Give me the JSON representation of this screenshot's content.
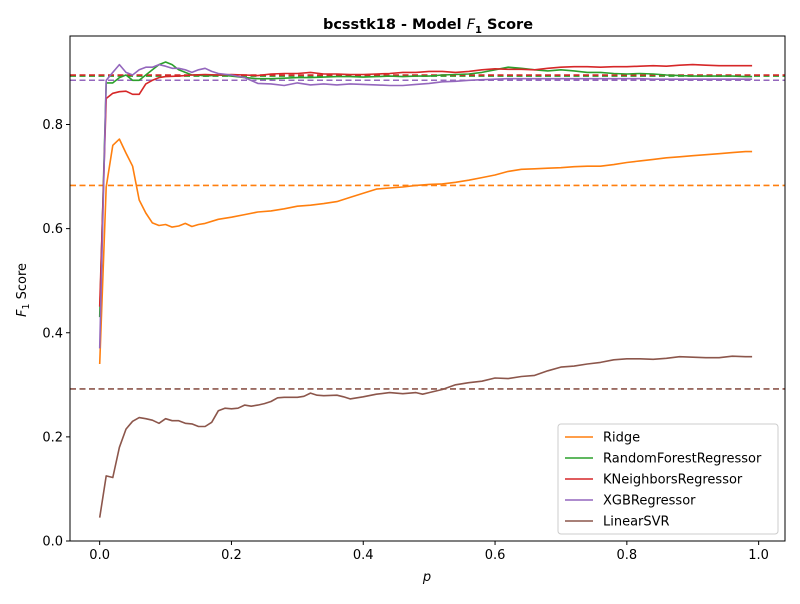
{
  "chart_data": {
    "type": "line",
    "title_prefix": "bcsstk18 - Model ",
    "title_f": "F",
    "title_sub": "1",
    "title_suffix": " Score",
    "xlabel": "p",
    "ylabel_f": "F",
    "ylabel_sub": "1",
    "ylabel_suffix": " Score",
    "xlim": [
      -0.045,
      1.04
    ],
    "ylim": [
      0.0,
      0.97
    ],
    "xticks": [
      0.0,
      0.2,
      0.4,
      0.6,
      0.8,
      1.0
    ],
    "xtick_labels": [
      "0.0",
      "0.2",
      "0.4",
      "0.6",
      "0.8",
      "1.0"
    ],
    "yticks": [
      0.0,
      0.2,
      0.4,
      0.6,
      0.8
    ],
    "ytick_labels": [
      "0.0",
      "0.2",
      "0.4",
      "0.6",
      "0.8"
    ],
    "legend_position": "bottom-right",
    "series": [
      {
        "name": "Ridge",
        "color": "#ff7f0e",
        "baseline": 0.683,
        "points": [
          [
            0.0,
            0.34
          ],
          [
            0.01,
            0.68
          ],
          [
            0.02,
            0.76
          ],
          [
            0.03,
            0.772
          ],
          [
            0.04,
            0.745
          ],
          [
            0.05,
            0.72
          ],
          [
            0.06,
            0.655
          ],
          [
            0.07,
            0.63
          ],
          [
            0.08,
            0.611
          ],
          [
            0.09,
            0.606
          ],
          [
            0.1,
            0.608
          ],
          [
            0.11,
            0.603
          ],
          [
            0.12,
            0.605
          ],
          [
            0.13,
            0.61
          ],
          [
            0.14,
            0.604
          ],
          [
            0.15,
            0.608
          ],
          [
            0.16,
            0.61
          ],
          [
            0.18,
            0.618
          ],
          [
            0.2,
            0.622
          ],
          [
            0.22,
            0.627
          ],
          [
            0.24,
            0.632
          ],
          [
            0.26,
            0.634
          ],
          [
            0.28,
            0.638
          ],
          [
            0.3,
            0.643
          ],
          [
            0.32,
            0.645
          ],
          [
            0.34,
            0.648
          ],
          [
            0.36,
            0.652
          ],
          [
            0.38,
            0.66
          ],
          [
            0.4,
            0.668
          ],
          [
            0.42,
            0.676
          ],
          [
            0.44,
            0.678
          ],
          [
            0.46,
            0.68
          ],
          [
            0.48,
            0.683
          ],
          [
            0.5,
            0.685
          ],
          [
            0.52,
            0.686
          ],
          [
            0.54,
            0.689
          ],
          [
            0.56,
            0.693
          ],
          [
            0.58,
            0.698
          ],
          [
            0.6,
            0.703
          ],
          [
            0.62,
            0.71
          ],
          [
            0.64,
            0.714
          ],
          [
            0.66,
            0.715
          ],
          [
            0.68,
            0.716
          ],
          [
            0.7,
            0.717
          ],
          [
            0.72,
            0.719
          ],
          [
            0.74,
            0.72
          ],
          [
            0.76,
            0.72
          ],
          [
            0.78,
            0.723
          ],
          [
            0.8,
            0.727
          ],
          [
            0.82,
            0.73
          ],
          [
            0.84,
            0.733
          ],
          [
            0.86,
            0.736
          ],
          [
            0.88,
            0.738
          ],
          [
            0.9,
            0.74
          ],
          [
            0.92,
            0.742
          ],
          [
            0.94,
            0.744
          ],
          [
            0.96,
            0.746
          ],
          [
            0.98,
            0.748
          ],
          [
            0.99,
            0.748
          ]
        ]
      },
      {
        "name": "RandomForestRegressor",
        "color": "#2ca02c",
        "baseline": 0.893,
        "points": [
          [
            0.0,
            0.43
          ],
          [
            0.01,
            0.88
          ],
          [
            0.02,
            0.88
          ],
          [
            0.03,
            0.89
          ],
          [
            0.04,
            0.895
          ],
          [
            0.05,
            0.885
          ],
          [
            0.06,
            0.885
          ],
          [
            0.07,
            0.895
          ],
          [
            0.08,
            0.905
          ],
          [
            0.09,
            0.915
          ],
          [
            0.1,
            0.92
          ],
          [
            0.11,
            0.915
          ],
          [
            0.12,
            0.905
          ],
          [
            0.13,
            0.9
          ],
          [
            0.14,
            0.895
          ],
          [
            0.15,
            0.895
          ],
          [
            0.16,
            0.893
          ],
          [
            0.18,
            0.895
          ],
          [
            0.2,
            0.893
          ],
          [
            0.22,
            0.89
          ],
          [
            0.24,
            0.888
          ],
          [
            0.26,
            0.888
          ],
          [
            0.28,
            0.889
          ],
          [
            0.3,
            0.89
          ],
          [
            0.32,
            0.89
          ],
          [
            0.34,
            0.891
          ],
          [
            0.36,
            0.892
          ],
          [
            0.38,
            0.892
          ],
          [
            0.4,
            0.891
          ],
          [
            0.42,
            0.892
          ],
          [
            0.44,
            0.893
          ],
          [
            0.46,
            0.892
          ],
          [
            0.48,
            0.893
          ],
          [
            0.5,
            0.893
          ],
          [
            0.52,
            0.895
          ],
          [
            0.54,
            0.896
          ],
          [
            0.56,
            0.897
          ],
          [
            0.58,
            0.9
          ],
          [
            0.6,
            0.905
          ],
          [
            0.62,
            0.91
          ],
          [
            0.64,
            0.908
          ],
          [
            0.66,
            0.905
          ],
          [
            0.68,
            0.903
          ],
          [
            0.7,
            0.905
          ],
          [
            0.72,
            0.903
          ],
          [
            0.74,
            0.9
          ],
          [
            0.76,
            0.9
          ],
          [
            0.78,
            0.898
          ],
          [
            0.8,
            0.897
          ],
          [
            0.82,
            0.898
          ],
          [
            0.84,
            0.897
          ],
          [
            0.86,
            0.895
          ],
          [
            0.88,
            0.894
          ],
          [
            0.9,
            0.893
          ],
          [
            0.92,
            0.893
          ],
          [
            0.94,
            0.893
          ],
          [
            0.96,
            0.893
          ],
          [
            0.98,
            0.892
          ],
          [
            0.99,
            0.892
          ]
        ]
      },
      {
        "name": "KNeighborsRegressor",
        "color": "#d62728",
        "baseline": 0.895,
        "points": [
          [
            0.0,
            0.45
          ],
          [
            0.01,
            0.85
          ],
          [
            0.02,
            0.86
          ],
          [
            0.03,
            0.863
          ],
          [
            0.04,
            0.864
          ],
          [
            0.05,
            0.858
          ],
          [
            0.06,
            0.858
          ],
          [
            0.07,
            0.878
          ],
          [
            0.08,
            0.885
          ],
          [
            0.09,
            0.89
          ],
          [
            0.1,
            0.892
          ],
          [
            0.12,
            0.893
          ],
          [
            0.14,
            0.895
          ],
          [
            0.16,
            0.896
          ],
          [
            0.18,
            0.895
          ],
          [
            0.2,
            0.896
          ],
          [
            0.22,
            0.895
          ],
          [
            0.24,
            0.894
          ],
          [
            0.26,
            0.897
          ],
          [
            0.28,
            0.898
          ],
          [
            0.3,
            0.898
          ],
          [
            0.32,
            0.9
          ],
          [
            0.34,
            0.897
          ],
          [
            0.36,
            0.897
          ],
          [
            0.38,
            0.896
          ],
          [
            0.4,
            0.896
          ],
          [
            0.42,
            0.897
          ],
          [
            0.44,
            0.898
          ],
          [
            0.46,
            0.9
          ],
          [
            0.48,
            0.9
          ],
          [
            0.5,
            0.902
          ],
          [
            0.52,
            0.902
          ],
          [
            0.54,
            0.9
          ],
          [
            0.56,
            0.902
          ],
          [
            0.58,
            0.905
          ],
          [
            0.6,
            0.907
          ],
          [
            0.62,
            0.906
          ],
          [
            0.64,
            0.906
          ],
          [
            0.66,
            0.905
          ],
          [
            0.68,
            0.908
          ],
          [
            0.7,
            0.91
          ],
          [
            0.72,
            0.911
          ],
          [
            0.74,
            0.911
          ],
          [
            0.76,
            0.91
          ],
          [
            0.78,
            0.911
          ],
          [
            0.8,
            0.911
          ],
          [
            0.82,
            0.912
          ],
          [
            0.84,
            0.913
          ],
          [
            0.86,
            0.912
          ],
          [
            0.88,
            0.914
          ],
          [
            0.9,
            0.915
          ],
          [
            0.92,
            0.914
          ],
          [
            0.94,
            0.913
          ],
          [
            0.96,
            0.913
          ],
          [
            0.98,
            0.913
          ],
          [
            0.99,
            0.913
          ]
        ]
      },
      {
        "name": "XGBRegressor",
        "color": "#9467bd",
        "baseline": 0.885,
        "points": [
          [
            0.0,
            0.37
          ],
          [
            0.01,
            0.885
          ],
          [
            0.02,
            0.9
          ],
          [
            0.03,
            0.915
          ],
          [
            0.04,
            0.9
          ],
          [
            0.05,
            0.895
          ],
          [
            0.06,
            0.905
          ],
          [
            0.07,
            0.91
          ],
          [
            0.08,
            0.91
          ],
          [
            0.09,
            0.915
          ],
          [
            0.1,
            0.912
          ],
          [
            0.11,
            0.908
          ],
          [
            0.12,
            0.908
          ],
          [
            0.13,
            0.905
          ],
          [
            0.14,
            0.9
          ],
          [
            0.15,
            0.905
          ],
          [
            0.16,
            0.908
          ],
          [
            0.17,
            0.902
          ],
          [
            0.18,
            0.898
          ],
          [
            0.2,
            0.895
          ],
          [
            0.22,
            0.89
          ],
          [
            0.24,
            0.879
          ],
          [
            0.26,
            0.878
          ],
          [
            0.28,
            0.875
          ],
          [
            0.3,
            0.88
          ],
          [
            0.32,
            0.876
          ],
          [
            0.34,
            0.878
          ],
          [
            0.36,
            0.876
          ],
          [
            0.38,
            0.878
          ],
          [
            0.4,
            0.877
          ],
          [
            0.42,
            0.876
          ],
          [
            0.44,
            0.875
          ],
          [
            0.46,
            0.875
          ],
          [
            0.48,
            0.877
          ],
          [
            0.5,
            0.879
          ],
          [
            0.52,
            0.882
          ],
          [
            0.54,
            0.883
          ],
          [
            0.56,
            0.885
          ],
          [
            0.58,
            0.886
          ],
          [
            0.6,
            0.887
          ],
          [
            0.62,
            0.888
          ],
          [
            0.64,
            0.888
          ],
          [
            0.66,
            0.888
          ],
          [
            0.68,
            0.888
          ],
          [
            0.7,
            0.888
          ],
          [
            0.72,
            0.888
          ],
          [
            0.74,
            0.888
          ],
          [
            0.76,
            0.888
          ],
          [
            0.78,
            0.888
          ],
          [
            0.8,
            0.888
          ],
          [
            0.82,
            0.888
          ],
          [
            0.84,
            0.887
          ],
          [
            0.86,
            0.887
          ],
          [
            0.88,
            0.887
          ],
          [
            0.9,
            0.887
          ],
          [
            0.92,
            0.887
          ],
          [
            0.94,
            0.887
          ],
          [
            0.96,
            0.887
          ],
          [
            0.98,
            0.887
          ],
          [
            0.99,
            0.887
          ]
        ]
      },
      {
        "name": "LinearSVR",
        "color": "#8c564b",
        "baseline": 0.292,
        "points": [
          [
            0.0,
            0.045
          ],
          [
            0.01,
            0.125
          ],
          [
            0.02,
            0.122
          ],
          [
            0.03,
            0.18
          ],
          [
            0.04,
            0.215
          ],
          [
            0.05,
            0.23
          ],
          [
            0.06,
            0.237
          ],
          [
            0.07,
            0.235
          ],
          [
            0.08,
            0.232
          ],
          [
            0.09,
            0.226
          ],
          [
            0.1,
            0.235
          ],
          [
            0.11,
            0.231
          ],
          [
            0.12,
            0.231
          ],
          [
            0.13,
            0.226
          ],
          [
            0.14,
            0.225
          ],
          [
            0.15,
            0.22
          ],
          [
            0.16,
            0.22
          ],
          [
            0.17,
            0.228
          ],
          [
            0.18,
            0.25
          ],
          [
            0.19,
            0.255
          ],
          [
            0.2,
            0.254
          ],
          [
            0.21,
            0.255
          ],
          [
            0.22,
            0.261
          ],
          [
            0.23,
            0.259
          ],
          [
            0.24,
            0.261
          ],
          [
            0.25,
            0.264
          ],
          [
            0.26,
            0.268
          ],
          [
            0.27,
            0.275
          ],
          [
            0.28,
            0.276
          ],
          [
            0.3,
            0.276
          ],
          [
            0.31,
            0.278
          ],
          [
            0.32,
            0.284
          ],
          [
            0.33,
            0.28
          ],
          [
            0.34,
            0.279
          ],
          [
            0.36,
            0.28
          ],
          [
            0.37,
            0.277
          ],
          [
            0.38,
            0.273
          ],
          [
            0.4,
            0.277
          ],
          [
            0.42,
            0.282
          ],
          [
            0.44,
            0.285
          ],
          [
            0.46,
            0.283
          ],
          [
            0.48,
            0.285
          ],
          [
            0.49,
            0.282
          ],
          [
            0.5,
            0.285
          ],
          [
            0.52,
            0.291
          ],
          [
            0.54,
            0.3
          ],
          [
            0.56,
            0.304
          ],
          [
            0.58,
            0.307
          ],
          [
            0.6,
            0.313
          ],
          [
            0.62,
            0.312
          ],
          [
            0.64,
            0.316
          ],
          [
            0.66,
            0.318
          ],
          [
            0.68,
            0.327
          ],
          [
            0.7,
            0.334
          ],
          [
            0.72,
            0.336
          ],
          [
            0.74,
            0.34
          ],
          [
            0.76,
            0.343
          ],
          [
            0.78,
            0.348
          ],
          [
            0.8,
            0.35
          ],
          [
            0.82,
            0.35
          ],
          [
            0.84,
            0.349
          ],
          [
            0.86,
            0.351
          ],
          [
            0.88,
            0.354
          ],
          [
            0.9,
            0.353
          ],
          [
            0.92,
            0.352
          ],
          [
            0.94,
            0.352
          ],
          [
            0.96,
            0.355
          ],
          [
            0.98,
            0.354
          ],
          [
            0.99,
            0.354
          ]
        ]
      }
    ]
  }
}
